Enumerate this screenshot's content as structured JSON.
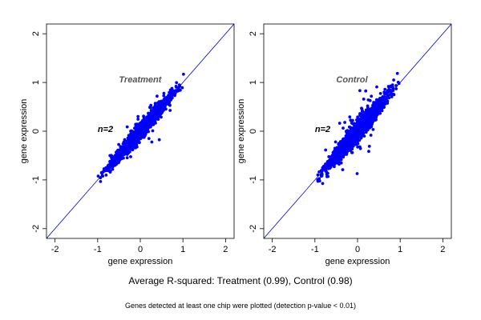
{
  "caption": "Average R-squared: Treatment (0.99), Control (0.98)",
  "footnote": "Genes detected at least one chip were plotted (detection p-value < 0.01)",
  "colors": {
    "points": "#0000ff",
    "diagonal": "#0000cc",
    "treatment_label": "#555555",
    "n_label": "#000000",
    "frame": "#000000"
  },
  "chart_data": [
    {
      "type": "scatter",
      "title": "",
      "xlabel": "gene expression",
      "ylabel": "gene expression",
      "xlim": [
        -2.2,
        2.2
      ],
      "ylim": [
        -2.2,
        2.2
      ],
      "xticks": [
        "-2",
        "-1",
        "0",
        "1",
        "2"
      ],
      "yticks": [
        "-2",
        "-1",
        "0",
        "1",
        "2"
      ],
      "reference_line": "y = x",
      "grid": false,
      "group_label": "Treatment",
      "n_label": "n=2",
      "cloud": {
        "x_range": [
          -1.08,
          1.1
        ],
        "diagonal_spread": 0.08,
        "outlier_fraction": 0.04
      }
    },
    {
      "type": "scatter",
      "title": "",
      "xlabel": "gene expression",
      "ylabel": "gene expression",
      "xlim": [
        -2.2,
        2.2
      ],
      "ylim": [
        -2.2,
        2.2
      ],
      "xticks": [
        "-2",
        "-1",
        "0",
        "1",
        "2"
      ],
      "yticks": [
        "-2",
        "-1",
        "0",
        "1",
        "2"
      ],
      "reference_line": "y = x",
      "grid": false,
      "group_label": "Control",
      "n_label": "n=2",
      "cloud": {
        "x_range": [
          -1.1,
          1.1
        ],
        "diagonal_spread": 0.11,
        "outlier_fraction": 0.06
      }
    }
  ]
}
